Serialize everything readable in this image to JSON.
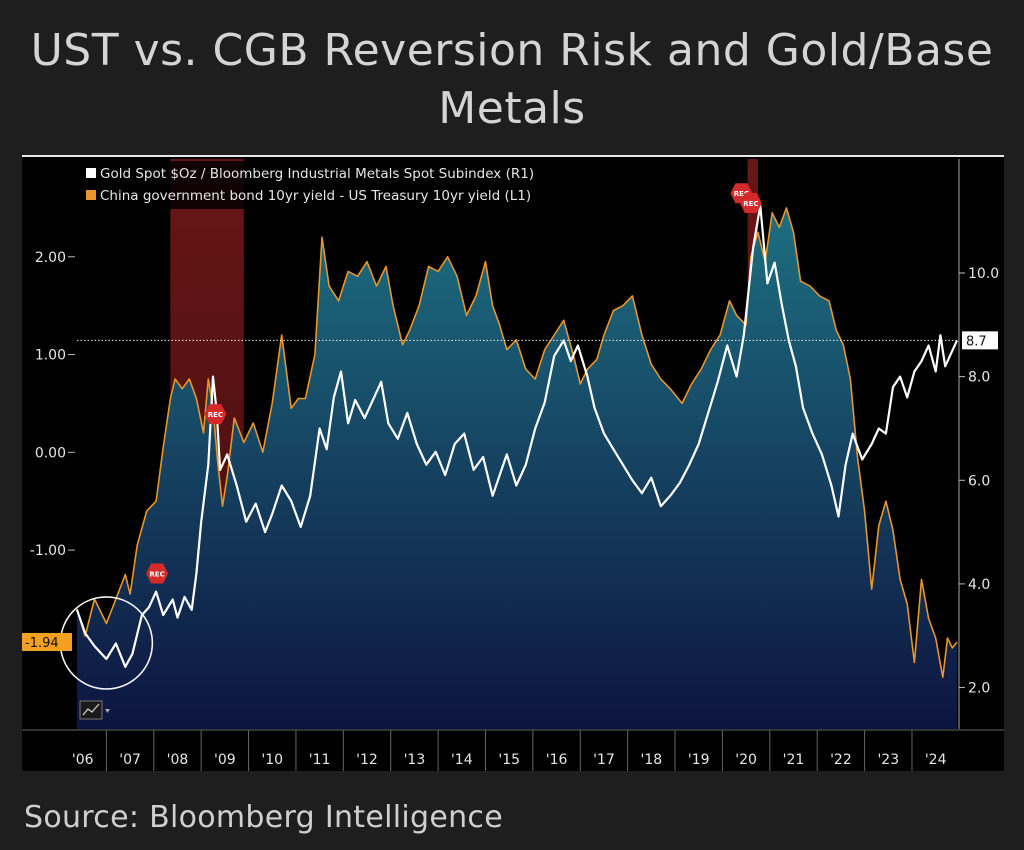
{
  "title": "UST vs. CGB Reversion Risk and Gold/Base Metals",
  "source": "Source: Bloomberg Intelligence",
  "colors": {
    "background": "#1e1e1e",
    "plot_bg": "#000000",
    "spread_line": "#e8962a",
    "spread_fill_top": "#1d6f80",
    "spread_fill_bottom": "#0d1440",
    "ratio_line": "#ffffff",
    "recession": "#8b1d1d",
    "rec_marker": "#d42a2a",
    "last_value_left": "#f3a020",
    "last_value_right": "#ffffff"
  },
  "chart_data": {
    "type": "line",
    "title": "UST vs. CGB Reversion Risk and Gold/Base Metals",
    "x_label": "",
    "x_ticks": [
      "'06",
      "'07",
      "'08",
      "'09",
      "'10",
      "'11",
      "'12",
      "'13",
      "'14",
      "'15",
      "'16",
      "'17",
      "'18",
      "'19",
      "'20",
      "'21",
      "'22",
      "'23",
      "'24"
    ],
    "y_left": {
      "ticks": [
        "2.00",
        "1.00",
        "0.00",
        "-1.00"
      ],
      "tick_values": [
        2,
        1,
        0,
        -1
      ],
      "range": [
        -2.83,
        3.0
      ]
    },
    "y_right": {
      "ticks": [
        "10.0",
        "8.0",
        "6.0",
        "4.0",
        "2.0"
      ],
      "tick_values": [
        10,
        8,
        6,
        4,
        2
      ],
      "range": [
        1.2,
        12.2
      ]
    },
    "reference_line": {
      "axis": "right",
      "value": 8.7
    },
    "recessions": [
      {
        "start": 2007.9,
        "end": 2009.45
      },
      {
        "start": 2020.08,
        "end": 2020.3
      }
    ],
    "rec_marker_label": "REC",
    "rec_markers": [
      {
        "x": 2007.62,
        "axis": "left",
        "y": -1.24
      },
      {
        "x": 2008.85,
        "axis": "left",
        "y": 0.39
      },
      {
        "x": 2019.95,
        "axis": "left",
        "y": 2.65
      },
      {
        "x": 2020.15,
        "axis": "left",
        "y": 2.55
      }
    ],
    "series": [
      {
        "name": "China government bond 10yr yield - US Treasury 10yr yield (L1)",
        "axis": "left",
        "style": "area",
        "last_value_label": "-1.94",
        "points": [
          [
            2005.93,
            -1.6
          ],
          [
            2006.1,
            -1.88
          ],
          [
            2006.3,
            -1.5
          ],
          [
            2006.55,
            -1.75
          ],
          [
            2006.75,
            -1.5
          ],
          [
            2006.95,
            -1.25
          ],
          [
            2007.05,
            -1.45
          ],
          [
            2007.2,
            -0.95
          ],
          [
            2007.4,
            -0.6
          ],
          [
            2007.6,
            -0.5
          ],
          [
            2007.75,
            0.05
          ],
          [
            2007.9,
            0.55
          ],
          [
            2008.0,
            0.75
          ],
          [
            2008.15,
            0.65
          ],
          [
            2008.3,
            0.75
          ],
          [
            2008.45,
            0.55
          ],
          [
            2008.6,
            0.2
          ],
          [
            2008.7,
            0.75
          ],
          [
            2008.8,
            0.45
          ],
          [
            2008.9,
            -0.1
          ],
          [
            2009.0,
            -0.55
          ],
          [
            2009.1,
            -0.25
          ],
          [
            2009.25,
            0.35
          ],
          [
            2009.45,
            0.1
          ],
          [
            2009.65,
            0.3
          ],
          [
            2009.85,
            0.0
          ],
          [
            2010.05,
            0.5
          ],
          [
            2010.25,
            1.2
          ],
          [
            2010.45,
            0.45
          ],
          [
            2010.6,
            0.55
          ],
          [
            2010.75,
            0.55
          ],
          [
            2010.95,
            1.0
          ],
          [
            2011.1,
            2.2
          ],
          [
            2011.25,
            1.7
          ],
          [
            2011.45,
            1.55
          ],
          [
            2011.65,
            1.85
          ],
          [
            2011.85,
            1.8
          ],
          [
            2012.05,
            1.95
          ],
          [
            2012.25,
            1.7
          ],
          [
            2012.45,
            1.9
          ],
          [
            2012.6,
            1.5
          ],
          [
            2012.8,
            1.1
          ],
          [
            2012.95,
            1.25
          ],
          [
            2013.15,
            1.5
          ],
          [
            2013.35,
            1.9
          ],
          [
            2013.55,
            1.85
          ],
          [
            2013.75,
            2.0
          ],
          [
            2013.95,
            1.8
          ],
          [
            2014.15,
            1.4
          ],
          [
            2014.35,
            1.6
          ],
          [
            2014.55,
            1.95
          ],
          [
            2014.7,
            1.5
          ],
          [
            2014.85,
            1.3
          ],
          [
            2015.0,
            1.05
          ],
          [
            2015.2,
            1.15
          ],
          [
            2015.4,
            0.85
          ],
          [
            2015.6,
            0.75
          ],
          [
            2015.8,
            1.05
          ],
          [
            2016.0,
            1.2
          ],
          [
            2016.2,
            1.35
          ],
          [
            2016.4,
            1.0
          ],
          [
            2016.55,
            0.7
          ],
          [
            2016.7,
            0.85
          ],
          [
            2016.9,
            0.95
          ],
          [
            2017.05,
            1.2
          ],
          [
            2017.25,
            1.45
          ],
          [
            2017.45,
            1.5
          ],
          [
            2017.65,
            1.6
          ],
          [
            2017.85,
            1.2
          ],
          [
            2018.05,
            0.9
          ],
          [
            2018.25,
            0.75
          ],
          [
            2018.45,
            0.65
          ],
          [
            2018.7,
            0.5
          ],
          [
            2018.9,
            0.7
          ],
          [
            2019.1,
            0.85
          ],
          [
            2019.3,
            1.05
          ],
          [
            2019.5,
            1.2
          ],
          [
            2019.7,
            1.55
          ],
          [
            2019.85,
            1.4
          ],
          [
            2020.05,
            1.3
          ],
          [
            2020.15,
            2.0
          ],
          [
            2020.3,
            2.25
          ],
          [
            2020.45,
            1.95
          ],
          [
            2020.6,
            2.45
          ],
          [
            2020.75,
            2.3
          ],
          [
            2020.9,
            2.5
          ],
          [
            2021.05,
            2.25
          ],
          [
            2021.2,
            1.75
          ],
          [
            2021.4,
            1.7
          ],
          [
            2021.6,
            1.6
          ],
          [
            2021.8,
            1.55
          ],
          [
            2021.95,
            1.25
          ],
          [
            2022.1,
            1.1
          ],
          [
            2022.25,
            0.75
          ],
          [
            2022.4,
            -0.05
          ],
          [
            2022.55,
            -0.6
          ],
          [
            2022.7,
            -1.4
          ],
          [
            2022.85,
            -0.75
          ],
          [
            2023.0,
            -0.5
          ],
          [
            2023.15,
            -0.8
          ],
          [
            2023.3,
            -1.3
          ],
          [
            2023.45,
            -1.55
          ],
          [
            2023.6,
            -2.15
          ],
          [
            2023.75,
            -1.3
          ],
          [
            2023.9,
            -1.7
          ],
          [
            2024.05,
            -1.9
          ],
          [
            2024.2,
            -2.3
          ],
          [
            2024.3,
            -1.9
          ],
          [
            2024.4,
            -2.0
          ],
          [
            2024.5,
            -1.94
          ]
        ]
      },
      {
        "name": "Gold Spot $Oz / Bloomberg Industrial Metals Spot Subindex (R1)",
        "axis": "right",
        "style": "line",
        "last_value_label": "8.7",
        "points": [
          [
            2005.93,
            3.5
          ],
          [
            2006.1,
            3.05
          ],
          [
            2006.3,
            2.8
          ],
          [
            2006.55,
            2.55
          ],
          [
            2006.75,
            2.85
          ],
          [
            2006.95,
            2.4
          ],
          [
            2007.1,
            2.65
          ],
          [
            2007.3,
            3.4
          ],
          [
            2007.45,
            3.55
          ],
          [
            2007.6,
            3.85
          ],
          [
            2007.75,
            3.4
          ],
          [
            2007.95,
            3.7
          ],
          [
            2008.05,
            3.35
          ],
          [
            2008.2,
            3.75
          ],
          [
            2008.35,
            3.5
          ],
          [
            2008.45,
            4.2
          ],
          [
            2008.55,
            5.2
          ],
          [
            2008.7,
            6.3
          ],
          [
            2008.8,
            8.0
          ],
          [
            2008.88,
            7.3
          ],
          [
            2008.95,
            6.2
          ],
          [
            2009.1,
            6.5
          ],
          [
            2009.3,
            5.9
          ],
          [
            2009.5,
            5.2
          ],
          [
            2009.7,
            5.55
          ],
          [
            2009.9,
            5.0
          ],
          [
            2010.05,
            5.35
          ],
          [
            2010.25,
            5.9
          ],
          [
            2010.45,
            5.6
          ],
          [
            2010.65,
            5.1
          ],
          [
            2010.85,
            5.7
          ],
          [
            2011.05,
            7.0
          ],
          [
            2011.2,
            6.6
          ],
          [
            2011.35,
            7.6
          ],
          [
            2011.5,
            8.1
          ],
          [
            2011.65,
            7.1
          ],
          [
            2011.8,
            7.55
          ],
          [
            2012.0,
            7.2
          ],
          [
            2012.2,
            7.6
          ],
          [
            2012.35,
            7.9
          ],
          [
            2012.5,
            7.1
          ],
          [
            2012.7,
            6.8
          ],
          [
            2012.9,
            7.3
          ],
          [
            2013.1,
            6.7
          ],
          [
            2013.3,
            6.3
          ],
          [
            2013.5,
            6.55
          ],
          [
            2013.7,
            6.1
          ],
          [
            2013.9,
            6.7
          ],
          [
            2014.1,
            6.9
          ],
          [
            2014.3,
            6.2
          ],
          [
            2014.5,
            6.45
          ],
          [
            2014.7,
            5.7
          ],
          [
            2014.85,
            6.1
          ],
          [
            2015.0,
            6.5
          ],
          [
            2015.2,
            5.9
          ],
          [
            2015.4,
            6.3
          ],
          [
            2015.6,
            7.0
          ],
          [
            2015.8,
            7.5
          ],
          [
            2016.0,
            8.4
          ],
          [
            2016.2,
            8.7
          ],
          [
            2016.35,
            8.3
          ],
          [
            2016.5,
            8.6
          ],
          [
            2016.7,
            8.0
          ],
          [
            2016.85,
            7.4
          ],
          [
            2017.05,
            6.9
          ],
          [
            2017.25,
            6.6
          ],
          [
            2017.45,
            6.3
          ],
          [
            2017.65,
            6.0
          ],
          [
            2017.85,
            5.75
          ],
          [
            2018.05,
            6.05
          ],
          [
            2018.25,
            5.5
          ],
          [
            2018.45,
            5.7
          ],
          [
            2018.65,
            5.95
          ],
          [
            2018.85,
            6.3
          ],
          [
            2019.05,
            6.7
          ],
          [
            2019.25,
            7.3
          ],
          [
            2019.45,
            7.9
          ],
          [
            2019.65,
            8.6
          ],
          [
            2019.85,
            8.0
          ],
          [
            2020.0,
            8.8
          ],
          [
            2020.2,
            10.5
          ],
          [
            2020.35,
            11.3
          ],
          [
            2020.5,
            9.8
          ],
          [
            2020.65,
            10.2
          ],
          [
            2020.8,
            9.4
          ],
          [
            2020.95,
            8.7
          ],
          [
            2021.1,
            8.2
          ],
          [
            2021.25,
            7.4
          ],
          [
            2021.45,
            6.9
          ],
          [
            2021.65,
            6.5
          ],
          [
            2021.85,
            5.9
          ],
          [
            2022.0,
            5.3
          ],
          [
            2022.15,
            6.3
          ],
          [
            2022.3,
            6.9
          ],
          [
            2022.5,
            6.4
          ],
          [
            2022.7,
            6.7
          ],
          [
            2022.85,
            7.0
          ],
          [
            2023.0,
            6.9
          ],
          [
            2023.15,
            7.8
          ],
          [
            2023.3,
            8.0
          ],
          [
            2023.45,
            7.6
          ],
          [
            2023.6,
            8.1
          ],
          [
            2023.75,
            8.3
          ],
          [
            2023.9,
            8.6
          ],
          [
            2024.05,
            8.1
          ],
          [
            2024.15,
            8.8
          ],
          [
            2024.25,
            8.2
          ],
          [
            2024.4,
            8.5
          ],
          [
            2024.5,
            8.7
          ]
        ]
      }
    ],
    "annotations": [
      {
        "type": "circle",
        "label": "",
        "x": 2006.55,
        "axis": "left",
        "y": -1.95
      }
    ]
  }
}
